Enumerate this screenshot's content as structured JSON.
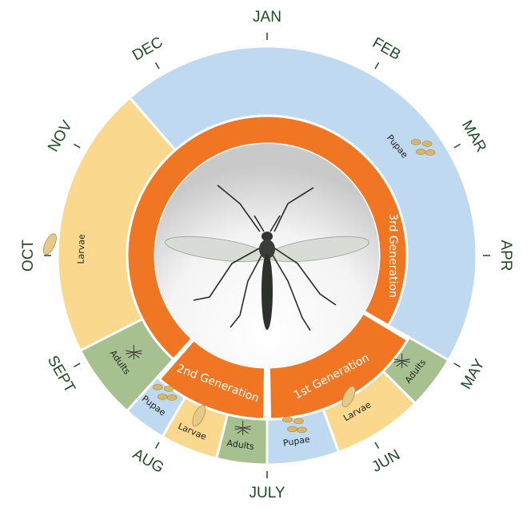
{
  "months": [
    "JAN",
    "FEB",
    "MAR",
    "APR",
    "MAY",
    "JUN",
    "JULY",
    "AUG",
    "SEPT",
    "OCT",
    "NOV",
    "DEC"
  ],
  "stages": [
    "Pupae",
    "Adults",
    "Larvae",
    "Pupae",
    "Adults",
    "Larvae",
    "Pupae",
    "Adults",
    "Larvae"
  ],
  "generations": [
    "3rd Generation",
    "1st Generation",
    "2nd Generation"
  ]
}
